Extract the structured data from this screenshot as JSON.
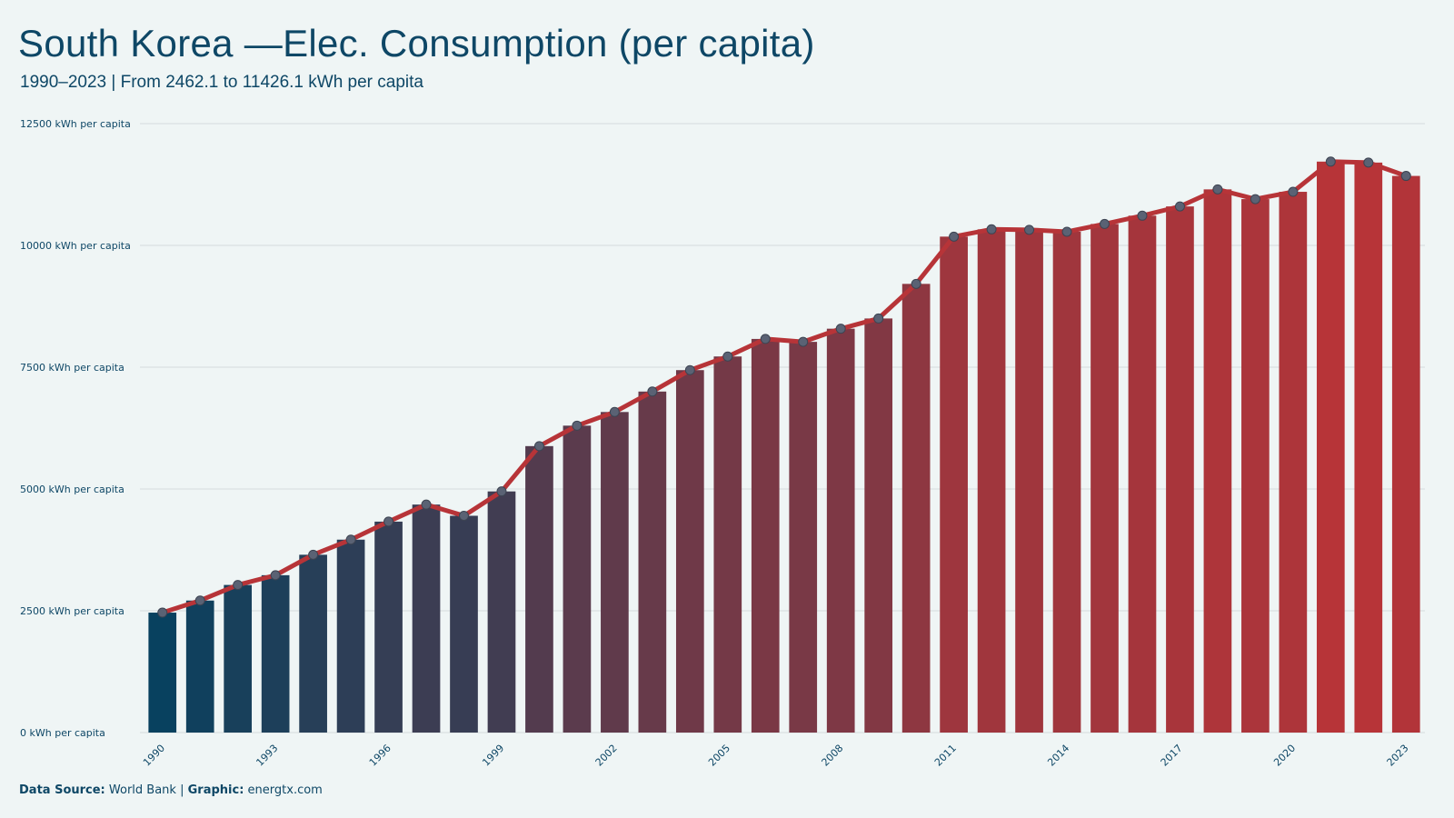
{
  "header": {
    "title": "South Korea —Elec. Consumption (per capita)",
    "subtitle": "1990–2023 | From 2462.1 to 11426.1 kWh per capita"
  },
  "footer": {
    "source_label": "Data Source:",
    "source_value": "World Bank",
    "separator": "|",
    "graphic_label": "Graphic:",
    "graphic_value": "energtx.com"
  },
  "colors": {
    "background": "#eff5f5",
    "bar_start": "#08415f",
    "bar_end": "#b73438",
    "line": "#b73438",
    "marker_fill": "#5a6274",
    "grid": "#d5dcdd",
    "text": "#0e4766"
  },
  "chart_data": {
    "type": "bar",
    "overlay": "line-with-markers",
    "title": "South Korea —Elec. Consumption (per capita)",
    "subtitle": "1990–2023 | From 2462.1 to 11426.1 kWh per capita",
    "ylim": [
      0,
      12500
    ],
    "y_ticks": [
      0,
      2500,
      5000,
      7500,
      10000,
      12500
    ],
    "y_tick_labels": [
      "0 kWh per capita",
      "2500 kWh per capita",
      "5000 kWh per capita",
      "7500 kWh per capita",
      "10000 kWh per capita",
      "12500 kWh per capita"
    ],
    "x_tick_labels": [
      "1990",
      "1993",
      "1996",
      "1999",
      "2002",
      "2005",
      "2008",
      "2011",
      "2014",
      "2017",
      "2020",
      "2023"
    ],
    "grid": true,
    "categories": [
      "1990",
      "1991",
      "1992",
      "1993",
      "1994",
      "1995",
      "1996",
      "1997",
      "1998",
      "1999",
      "2000",
      "2001",
      "2002",
      "2003",
      "2004",
      "2005",
      "2006",
      "2007",
      "2008",
      "2009",
      "2010",
      "2011",
      "2012",
      "2013",
      "2014",
      "2015",
      "2016",
      "2017",
      "2018",
      "2019",
      "2020",
      "2021",
      "2022",
      "2023"
    ],
    "values": [
      2462.1,
      2710,
      3030,
      3230,
      3650,
      3960,
      4330,
      4680,
      4450,
      4950,
      5880,
      6300,
      6580,
      7000,
      7440,
      7720,
      8080,
      8020,
      8290,
      8500,
      9210,
      10180,
      10330,
      10320,
      10280,
      10440,
      10610,
      10800,
      11150,
      10950,
      11100,
      11720,
      11700,
      11426.1
    ]
  }
}
